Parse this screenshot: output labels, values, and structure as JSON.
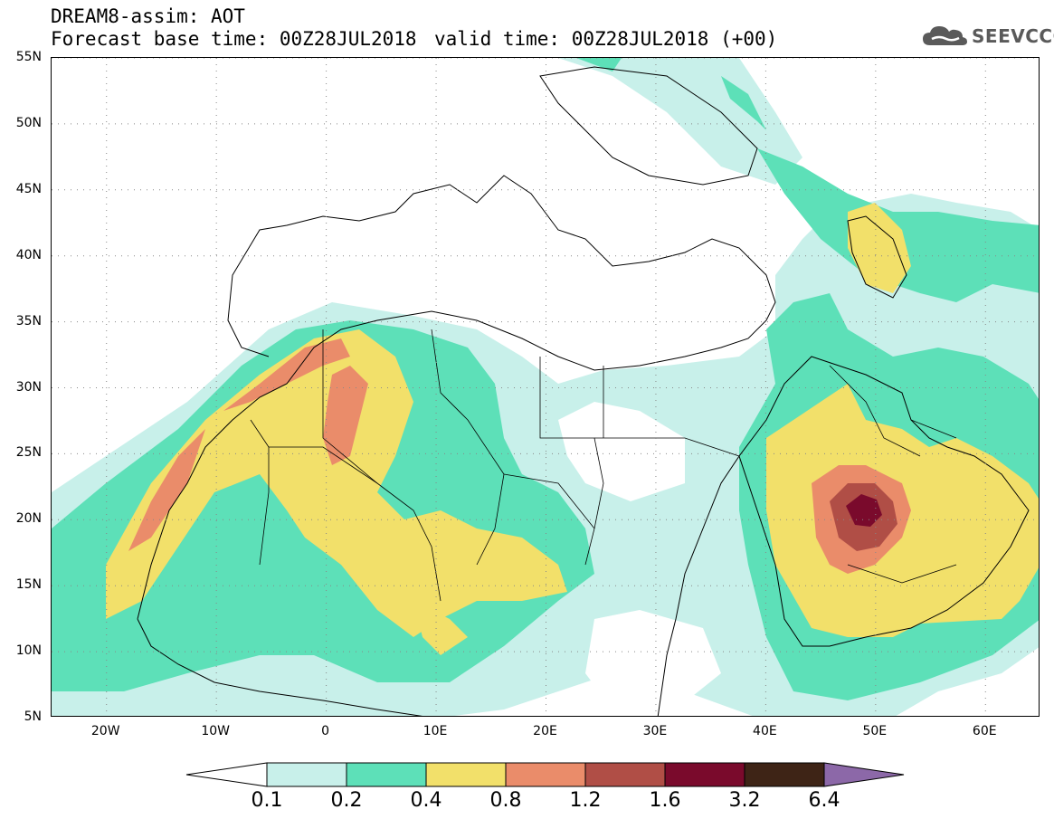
{
  "header": {
    "title": "DREAM8-assim: AOT",
    "base_time": "Forecast base time: 00Z28JUL2018",
    "valid_time": "valid time: 00Z28JUL2018 (+00)"
  },
  "logo": {
    "text": "SEEVCCC",
    "icon": "cloud-icon"
  },
  "map": {
    "projection": "lat-lon",
    "lon_range": [
      -25,
      65
    ],
    "lat_range": [
      5,
      55
    ],
    "lat_ticks": [
      {
        "value": 55,
        "label": "55N"
      },
      {
        "value": 50,
        "label": "50N"
      },
      {
        "value": 45,
        "label": "45N"
      },
      {
        "value": 40,
        "label": "40N"
      },
      {
        "value": 35,
        "label": "35N"
      },
      {
        "value": 30,
        "label": "30N"
      },
      {
        "value": 25,
        "label": "25N"
      },
      {
        "value": 20,
        "label": "20N"
      },
      {
        "value": 15,
        "label": "15N"
      },
      {
        "value": 10,
        "label": "10N"
      },
      {
        "value": 5,
        "label": "5N"
      }
    ],
    "lon_ticks": [
      {
        "value": -20,
        "label": "20W"
      },
      {
        "value": -10,
        "label": "10W"
      },
      {
        "value": 0,
        "label": "0"
      },
      {
        "value": 10,
        "label": "10E"
      },
      {
        "value": 20,
        "label": "20E"
      },
      {
        "value": 30,
        "label": "30E"
      },
      {
        "value": 40,
        "label": "40E"
      },
      {
        "value": 50,
        "label": "50E"
      },
      {
        "value": 60,
        "label": "60E"
      }
    ],
    "grid": "dotted"
  },
  "colorbar": {
    "levels": [
      "0.1",
      "0.2",
      "0.4",
      "0.8",
      "1.2",
      "1.6",
      "3.2",
      "6.4"
    ],
    "colors": [
      "#ffffff",
      "#c8f0ea",
      "#5de0b8",
      "#f2e06a",
      "#ea8c6a",
      "#b04e46",
      "#7a0a2c",
      "#3e2416",
      "#8c68a8"
    ]
  },
  "chart_data": {
    "type": "heatmap",
    "title": "DREAM8-assim: AOT",
    "variable": "Aerosol Optical Thickness",
    "xlim": [
      -25,
      65
    ],
    "ylim": [
      5,
      55
    ],
    "levels": [
      0.1,
      0.2,
      0.4,
      0.8,
      1.2,
      1.6,
      3.2,
      6.4
    ],
    "max_region_lon_lat": [
      49,
      21
    ]
  }
}
